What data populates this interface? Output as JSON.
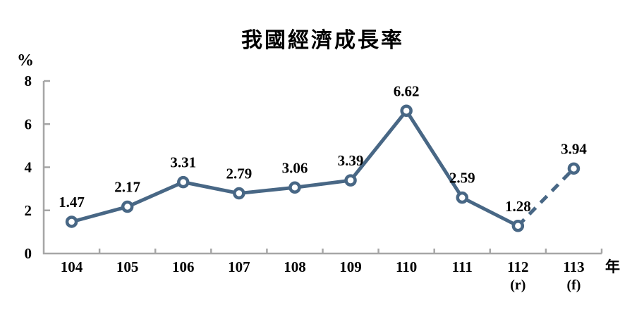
{
  "title": "我國經濟成長率",
  "colors": {
    "line": "#486785",
    "axis": "#a6a6a6",
    "marker_fill": "#ffffff",
    "text": "#000000",
    "background": "#ffffff"
  },
  "chart_data": {
    "type": "line",
    "title": "我國經濟成長率",
    "xlabel": "年",
    "ylabel": "%",
    "categories": [
      "104",
      "105",
      "106",
      "107",
      "108",
      "109",
      "110",
      "111",
      "112",
      "113"
    ],
    "category_sublabels": [
      "",
      "",
      "",
      "",
      "",
      "",
      "",
      "",
      "(r)",
      "(f)"
    ],
    "values": [
      1.47,
      2.17,
      3.31,
      2.79,
      3.06,
      3.39,
      6.62,
      2.59,
      1.28,
      3.94
    ],
    "data_labels": [
      "1.47",
      "2.17",
      "3.31",
      "2.79",
      "3.06",
      "3.39",
      "6.62",
      "2.59",
      "1.28",
      "3.94"
    ],
    "ylim": [
      0,
      8
    ],
    "y_ticks": [
      0,
      2,
      4,
      6,
      8
    ],
    "grid": false,
    "legend": false,
    "dashed_from_index": 8,
    "dashed_note": "segment from 112(r) to 113(f) is dashed (forecast)"
  }
}
